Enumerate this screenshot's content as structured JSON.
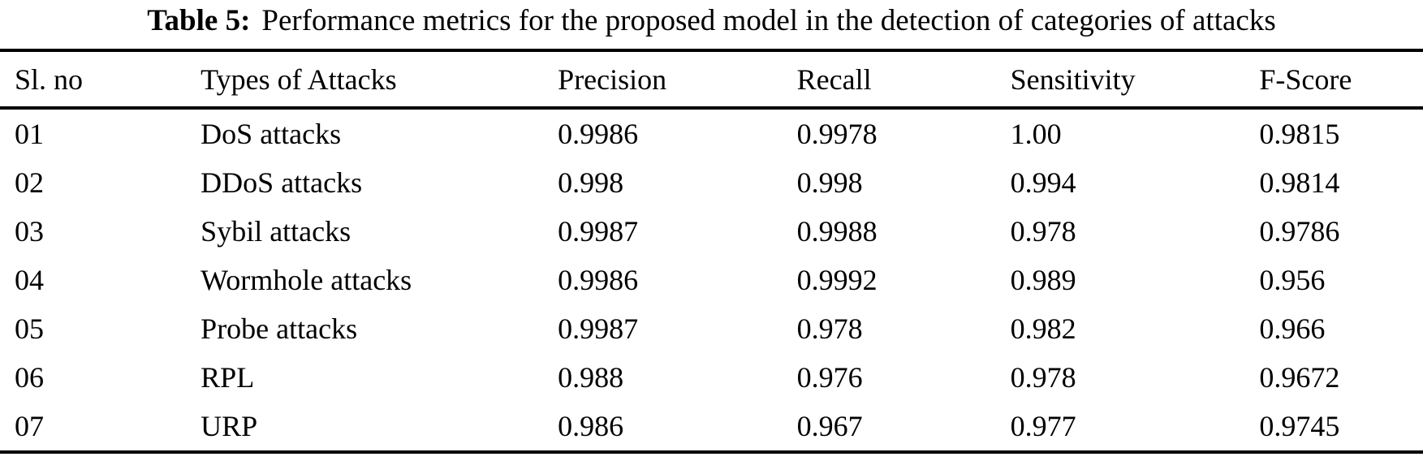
{
  "caption": {
    "label": "Table 5:",
    "text": "Performance metrics for the proposed model in the detection of categories of attacks"
  },
  "columns": [
    "Sl. no",
    "Types of Attacks",
    "Precision",
    "Recall",
    "Sensitivity",
    "F-Score"
  ],
  "rows": [
    [
      "01",
      "DoS attacks",
      "0.9986",
      "0.9978",
      "1.00",
      "0.9815"
    ],
    [
      "02",
      "DDoS attacks",
      "0.998",
      "0.998",
      "0.994",
      "0.9814"
    ],
    [
      "03",
      "Sybil attacks",
      "0.9987",
      "0.9988",
      "0.978",
      "0.9786"
    ],
    [
      "04",
      "Wormhole attacks",
      "0.9986",
      "0.9992",
      "0.989",
      "0.956"
    ],
    [
      "05",
      "Probe attacks",
      "0.9987",
      "0.978",
      "0.982",
      "0.966"
    ],
    [
      "06",
      "RPL",
      "0.988",
      "0.976",
      "0.978",
      "0.9672"
    ],
    [
      "07",
      "URP",
      "0.986",
      "0.967",
      "0.977",
      "0.9745"
    ]
  ]
}
